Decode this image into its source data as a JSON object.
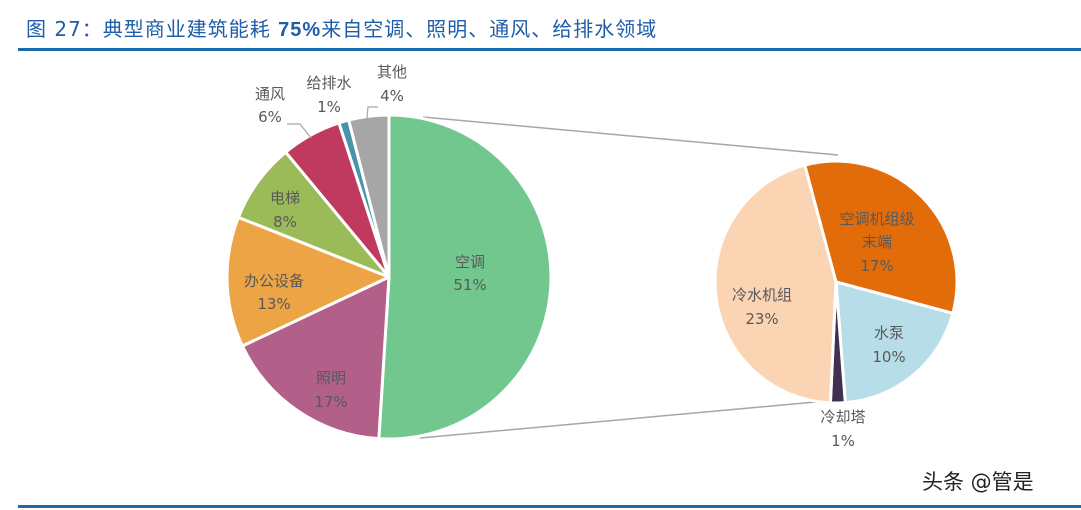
{
  "header": {
    "title_prefix": "图 27：典型商业建筑能耗 ",
    "title_num": "75%",
    "title_suffix": "来自空调、照明、通风、给排水领域"
  },
  "watermark": "头条 @管是",
  "colors": {
    "title": "#1f5da8",
    "rule": "#1a6aad",
    "connector": "#a6a6a6"
  },
  "chart_data": [
    {
      "type": "pie",
      "title": "典型商业建筑能耗构成",
      "categories": [
        "空调",
        "照明",
        "办公设备",
        "电梯",
        "通风",
        "给排水",
        "其他"
      ],
      "values": [
        51,
        17,
        13,
        8,
        6,
        1,
        4
      ],
      "labels": [
        "51%",
        "17%",
        "13%",
        "8%",
        "6%",
        "1%",
        "4%"
      ],
      "colors": [
        "#72c78f",
        "#b25f8a",
        "#eda444",
        "#9bbb59",
        "#c0395e",
        "#4a94aa",
        "#a6a6a6"
      ],
      "legend": "none (data labels)"
    },
    {
      "type": "pie",
      "title": "空调能耗细分",
      "categories": [
        "空调机组级末端",
        "水泵",
        "冷却塔",
        "冷水机组"
      ],
      "values": [
        17,
        10,
        1,
        23
      ],
      "labels": [
        "17%",
        "10%",
        "1%",
        "23%"
      ],
      "colors": [
        "#e36c0a",
        "#b7dde8",
        "#403152",
        "#fbd4b4"
      ],
      "legend": "none (data labels)"
    }
  ],
  "labels": {
    "main": [
      {
        "name": "空调",
        "pct": "51%"
      },
      {
        "name": "照明",
        "pct": "17%"
      },
      {
        "name": "办公设备",
        "pct": "13%"
      },
      {
        "name": "电梯",
        "pct": "8%"
      },
      {
        "name": "通风",
        "pct": "6%"
      },
      {
        "name": "给排水",
        "pct": "1%"
      },
      {
        "name": "其他",
        "pct": "4%"
      }
    ],
    "sub": [
      {
        "name1": "空调机组级",
        "name2": "末端",
        "pct": "17%"
      },
      {
        "name": "水泵",
        "pct": "10%"
      },
      {
        "name": "冷却塔",
        "pct": "1%"
      },
      {
        "name": "冷水机组",
        "pct": "23%"
      }
    ]
  }
}
